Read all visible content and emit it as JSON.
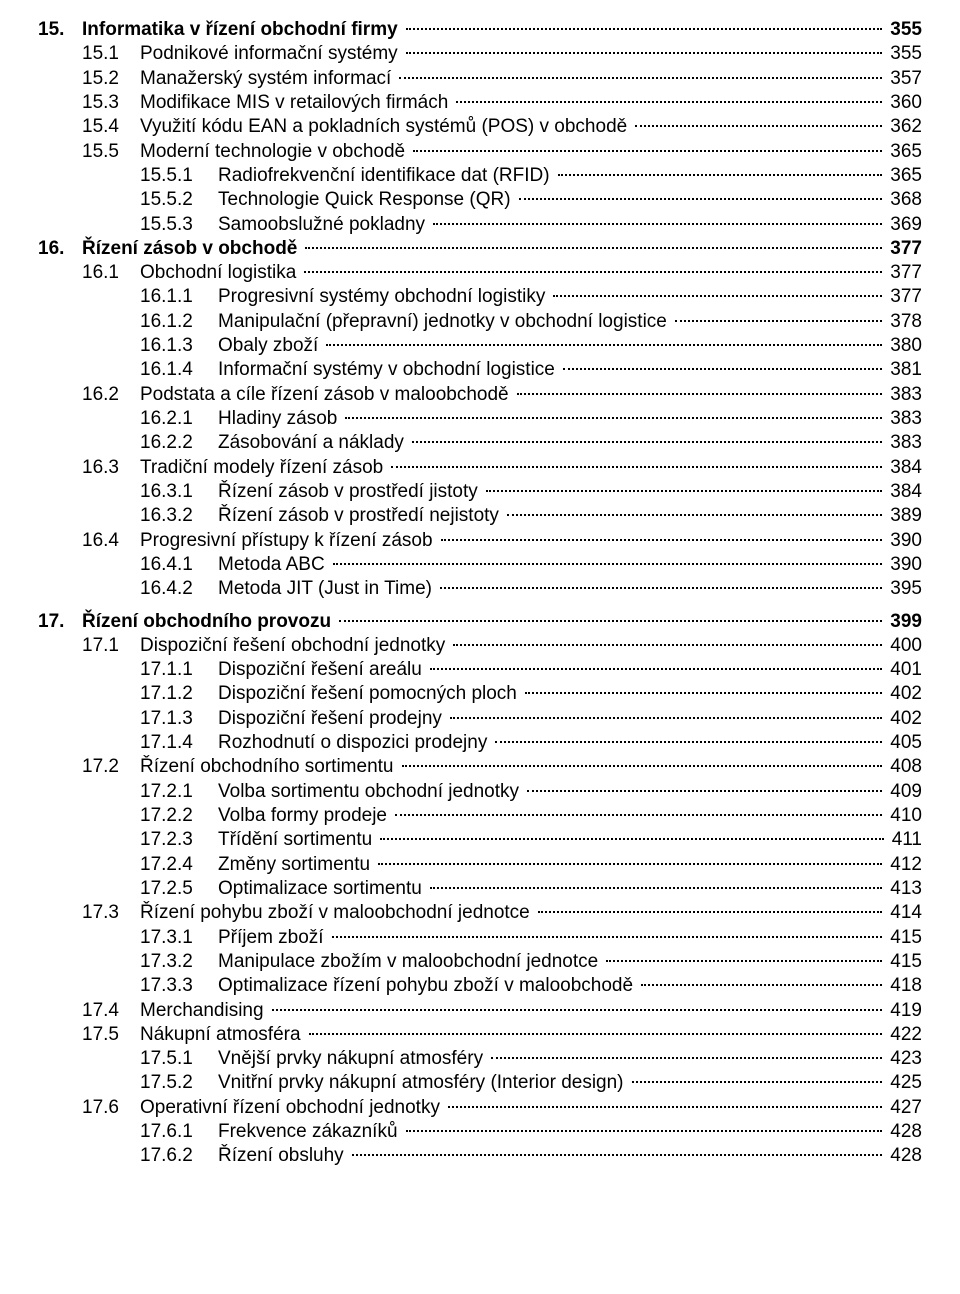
{
  "entries": [
    {
      "level": 0,
      "bold": true,
      "num": "15.",
      "label": "Informatika v řízení obchodní firmy",
      "page": "355"
    },
    {
      "level": 1,
      "bold": false,
      "num": "15.1",
      "label": "Podnikové informační systémy",
      "page": "355"
    },
    {
      "level": 1,
      "bold": false,
      "num": "15.2",
      "label": "Manažerský systém informací",
      "page": "357"
    },
    {
      "level": 1,
      "bold": false,
      "num": "15.3",
      "label": "Modifikace MIS v retailových firmách",
      "page": "360"
    },
    {
      "level": 1,
      "bold": false,
      "num": "15.4",
      "label": "Využití kódu EAN a pokladních systémů (POS) v obchodě",
      "page": "362"
    },
    {
      "level": 1,
      "bold": false,
      "num": "15.5",
      "label": "Moderní technologie v obchodě",
      "page": "365"
    },
    {
      "level": 2,
      "bold": false,
      "num": "15.5.1",
      "label": "Radiofrekvenční identifikace dat (RFID)",
      "page": "365"
    },
    {
      "level": 2,
      "bold": false,
      "num": "15.5.2",
      "label": "Technologie Quick Response (QR)",
      "page": "368"
    },
    {
      "level": 2,
      "bold": false,
      "num": "15.5.3",
      "label": "Samoobslužné pokladny",
      "page": "369"
    },
    {
      "level": 0,
      "bold": true,
      "num": "16.",
      "label": "Řízení zásob v obchodě",
      "page": "377"
    },
    {
      "level": 1,
      "bold": false,
      "num": "16.1",
      "label": "Obchodní logistika",
      "page": "377"
    },
    {
      "level": 2,
      "bold": false,
      "num": "16.1.1",
      "label": "Progresivní systémy obchodní logistiky",
      "page": "377"
    },
    {
      "level": 2,
      "bold": false,
      "num": "16.1.2",
      "label": "Manipulační (přepravní) jednotky v obchodní logistice",
      "page": "378"
    },
    {
      "level": 2,
      "bold": false,
      "num": "16.1.3",
      "label": "Obaly zboží",
      "page": "380"
    },
    {
      "level": 2,
      "bold": false,
      "num": "16.1.4",
      "label": "Informační systémy v obchodní logistice",
      "page": "381"
    },
    {
      "level": 1,
      "bold": false,
      "num": "16.2",
      "label": "Podstata a cíle řízení zásob v maloobchodě",
      "page": "383"
    },
    {
      "level": 2,
      "bold": false,
      "num": "16.2.1",
      "label": "Hladiny zásob",
      "page": "383"
    },
    {
      "level": 2,
      "bold": false,
      "num": "16.2.2",
      "label": "Zásobování a náklady",
      "page": "383"
    },
    {
      "level": 1,
      "bold": false,
      "num": "16.3",
      "label": "Tradiční modely řízení zásob",
      "page": "384"
    },
    {
      "level": 2,
      "bold": false,
      "num": "16.3.1",
      "label": "Řízení zásob v prostředí jistoty",
      "page": "384"
    },
    {
      "level": 2,
      "bold": false,
      "num": "16.3.2",
      "label": "Řízení zásob v prostředí nejistoty",
      "page": "389"
    },
    {
      "level": 1,
      "bold": false,
      "num": "16.4",
      "label": "Progresivní přístupy k řízení zásob",
      "page": "390"
    },
    {
      "level": 2,
      "bold": false,
      "num": "16.4.1",
      "label": "Metoda ABC",
      "page": "390"
    },
    {
      "level": 2,
      "bold": false,
      "num": "16.4.2",
      "label": "Metoda JIT (Just in Time)",
      "page": "395"
    },
    {
      "level": 0,
      "bold": true,
      "num": "17.",
      "label": "Řízení obchodního provozu",
      "page": "399",
      "gapBefore": true
    },
    {
      "level": 1,
      "bold": false,
      "num": "17.1",
      "label": "Dispoziční řešení obchodní jednotky",
      "page": "400"
    },
    {
      "level": 2,
      "bold": false,
      "num": "17.1.1",
      "label": "Dispoziční řešení areálu",
      "page": "401"
    },
    {
      "level": 2,
      "bold": false,
      "num": "17.1.2",
      "label": "Dispoziční řešení pomocných ploch",
      "page": "402"
    },
    {
      "level": 2,
      "bold": false,
      "num": "17.1.3",
      "label": "Dispoziční řešení prodejny",
      "page": "402"
    },
    {
      "level": 2,
      "bold": false,
      "num": "17.1.4",
      "label": "Rozhodnutí o dispozici prodejny",
      "page": "405"
    },
    {
      "level": 1,
      "bold": false,
      "num": "17.2",
      "label": "Řízení obchodního sortimentu",
      "page": "408"
    },
    {
      "level": 2,
      "bold": false,
      "num": "17.2.1",
      "label": "Volba sortimentu obchodní jednotky",
      "page": "409"
    },
    {
      "level": 2,
      "bold": false,
      "num": "17.2.2",
      "label": "Volba formy prodeje",
      "page": "410"
    },
    {
      "level": 2,
      "bold": false,
      "num": "17.2.3",
      "label": "Třídění sortimentu",
      "page": "411"
    },
    {
      "level": 2,
      "bold": false,
      "num": "17.2.4",
      "label": "Změny sortimentu",
      "page": "412"
    },
    {
      "level": 2,
      "bold": false,
      "num": "17.2.5",
      "label": "Optimalizace sortimentu",
      "page": "413"
    },
    {
      "level": 1,
      "bold": false,
      "num": "17.3",
      "label": "Řízení pohybu zboží v maloobchodní jednotce",
      "page": "414"
    },
    {
      "level": 2,
      "bold": false,
      "num": "17.3.1",
      "label": "Příjem zboží",
      "page": "415"
    },
    {
      "level": 2,
      "bold": false,
      "num": "17.3.2",
      "label": "Manipulace zbožím v maloobchodní jednotce",
      "page": "415"
    },
    {
      "level": 2,
      "bold": false,
      "num": "17.3.3",
      "label": "Optimalizace řízení pohybu zboží v maloobchodě",
      "page": "418"
    },
    {
      "level": 1,
      "bold": false,
      "num": "17.4",
      "label": "Merchandising",
      "page": "419"
    },
    {
      "level": 1,
      "bold": false,
      "num": "17.5",
      "label": "Nákupní atmosféra",
      "page": "422"
    },
    {
      "level": 2,
      "bold": false,
      "num": "17.5.1",
      "label": "Vnější prvky nákupní atmosféry",
      "page": "423"
    },
    {
      "level": 2,
      "bold": false,
      "num": "17.5.2",
      "label": "Vnitřní prvky nákupní atmosféry (Interior design)",
      "page": "425"
    },
    {
      "level": 1,
      "bold": false,
      "num": "17.6",
      "label": "Operativní řízení obchodní jednotky",
      "page": "427"
    },
    {
      "level": 2,
      "bold": false,
      "num": "17.6.1",
      "label": "Frekvence zákazníků",
      "page": "428"
    },
    {
      "level": 2,
      "bold": false,
      "num": "17.6.2",
      "label": "Řízení obsluhy",
      "page": "428"
    }
  ]
}
